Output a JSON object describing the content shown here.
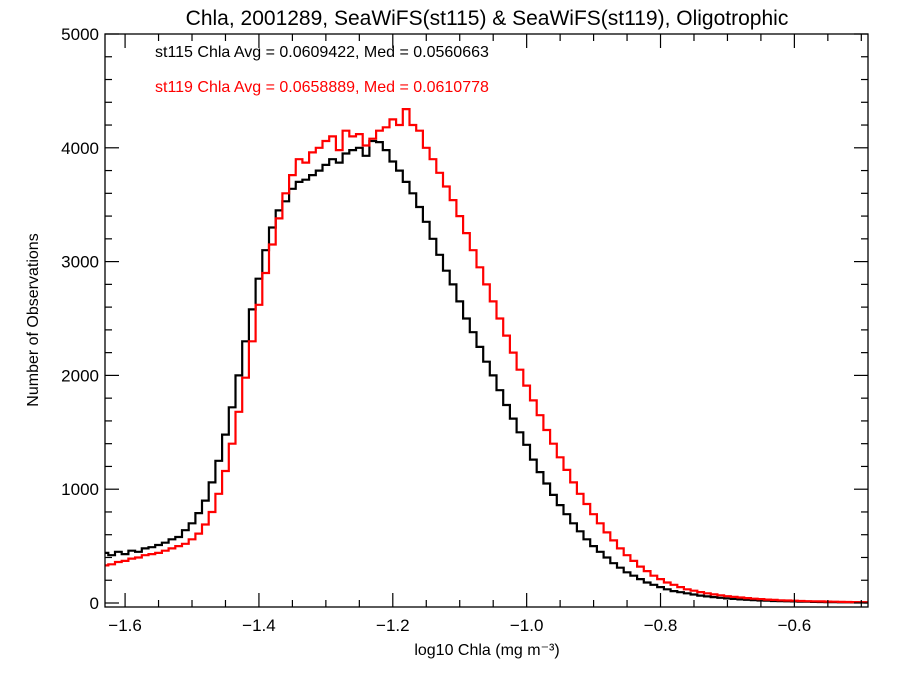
{
  "chart_data": {
    "type": "line",
    "subtype": "step-histogram",
    "title": "Chla, 2001289, SeaWiFS(st115) & SeaWiFS(st119), Oligotrophic",
    "xlabel": "log10 Chla (mg m⁻³)",
    "ylabel": "Number of Observations",
    "xlim": [
      -1.63,
      -0.49
    ],
    "ylim": [
      0,
      5000
    ],
    "grid": false,
    "x_ticks": [
      -1.6,
      -1.4,
      -1.2,
      -1.0,
      -0.8,
      -0.6
    ],
    "x_tick_labels": [
      "−1.6",
      "−1.4",
      "−1.2",
      "−1.0",
      "−0.8",
      "−0.6"
    ],
    "x_minor_step": 0.05,
    "y_ticks": [
      0,
      1000,
      2000,
      3000,
      4000,
      5000
    ],
    "y_tick_labels": [
      "0",
      "1000",
      "2000",
      "3000",
      "4000",
      "5000"
    ],
    "y_minor_step": 200,
    "annotations": [
      {
        "text": "st115 Chla Avg = 0.0609422, Med = 0.0560663",
        "color": "#000000",
        "position": "top-left"
      },
      {
        "text": "st119 Chla Avg = 0.0658889, Med = 0.0610778",
        "color": "#ff0000",
        "position": "top-left"
      }
    ],
    "x": [
      -1.63,
      -1.62,
      -1.61,
      -1.6,
      -1.59,
      -1.58,
      -1.57,
      -1.56,
      -1.55,
      -1.54,
      -1.53,
      -1.52,
      -1.51,
      -1.5,
      -1.49,
      -1.48,
      -1.47,
      -1.46,
      -1.45,
      -1.44,
      -1.43,
      -1.42,
      -1.41,
      -1.4,
      -1.39,
      -1.38,
      -1.37,
      -1.36,
      -1.35,
      -1.34,
      -1.33,
      -1.32,
      -1.31,
      -1.3,
      -1.29,
      -1.28,
      -1.27,
      -1.26,
      -1.25,
      -1.24,
      -1.23,
      -1.22,
      -1.21,
      -1.2,
      -1.19,
      -1.18,
      -1.17,
      -1.16,
      -1.15,
      -1.14,
      -1.13,
      -1.12,
      -1.11,
      -1.1,
      -1.09,
      -1.08,
      -1.07,
      -1.06,
      -1.05,
      -1.04,
      -1.03,
      -1.02,
      -1.01,
      -1.0,
      -0.99,
      -0.98,
      -0.97,
      -0.96,
      -0.95,
      -0.94,
      -0.93,
      -0.92,
      -0.91,
      -0.9,
      -0.89,
      -0.88,
      -0.87,
      -0.86,
      -0.85,
      -0.84,
      -0.83,
      -0.82,
      -0.81,
      -0.8,
      -0.79,
      -0.78,
      -0.77,
      -0.76,
      -0.75,
      -0.74,
      -0.73,
      -0.72,
      -0.71,
      -0.7,
      -0.69,
      -0.68,
      -0.67,
      -0.66,
      -0.65,
      -0.64,
      -0.63,
      -0.62,
      -0.61,
      -0.6,
      -0.59,
      -0.58,
      -0.57,
      -0.56,
      -0.55,
      -0.54,
      -0.53,
      -0.52,
      -0.51,
      -0.5,
      -0.49
    ],
    "series": [
      {
        "name": "st115",
        "color": "#000000",
        "values": [
          440,
          420,
          450,
          430,
          460,
          450,
          480,
          490,
          510,
          530,
          560,
          580,
          640,
          700,
          790,
          900,
          1060,
          1250,
          1480,
          1720,
          2000,
          2300,
          2580,
          2850,
          3100,
          3300,
          3450,
          3530,
          3640,
          3700,
          3720,
          3760,
          3800,
          3850,
          3900,
          3870,
          3950,
          3980,
          4000,
          3930,
          4060,
          4050,
          3980,
          3880,
          3800,
          3700,
          3600,
          3480,
          3350,
          3200,
          3060,
          2920,
          2800,
          2650,
          2500,
          2380,
          2250,
          2120,
          2000,
          1870,
          1740,
          1620,
          1500,
          1390,
          1260,
          1150,
          1050,
          950,
          860,
          780,
          700,
          630,
          560,
          500,
          450,
          400,
          350,
          310,
          270,
          240,
          210,
          180,
          160,
          140,
          120,
          105,
          95,
          85,
          75,
          65,
          58,
          52,
          46,
          40,
          36,
          32,
          28,
          25,
          22,
          20,
          18,
          16,
          15,
          14,
          12,
          11,
          10,
          9,
          8,
          7,
          6,
          6,
          5,
          5,
          4,
          4
        ]
      },
      {
        "name": "st119",
        "color": "#ff0000",
        "values": [
          330,
          340,
          360,
          370,
          390,
          400,
          420,
          430,
          440,
          460,
          480,
          500,
          520,
          560,
          610,
          690,
          800,
          960,
          1160,
          1400,
          1680,
          1980,
          2300,
          2620,
          2900,
          3150,
          3380,
          3600,
          3760,
          3900,
          3870,
          3960,
          4000,
          4060,
          4100,
          3980,
          4150,
          4100,
          4120,
          4020,
          4080,
          4150,
          4180,
          4250,
          4200,
          4340,
          4200,
          4150,
          4000,
          3900,
          3780,
          3660,
          3540,
          3400,
          3250,
          3100,
          2950,
          2800,
          2650,
          2500,
          2350,
          2200,
          2050,
          1910,
          1780,
          1650,
          1520,
          1400,
          1280,
          1170,
          1060,
          960,
          870,
          780,
          700,
          620,
          550,
          480,
          420,
          370,
          320,
          280,
          240,
          210,
          180,
          160,
          140,
          120,
          108,
          96,
          85,
          76,
          68,
          60,
          54,
          48,
          43,
          38,
          34,
          30,
          27,
          24,
          22,
          20,
          18,
          16,
          15,
          14,
          12,
          11,
          10,
          9,
          8,
          7,
          7,
          6
        ]
      }
    ]
  }
}
